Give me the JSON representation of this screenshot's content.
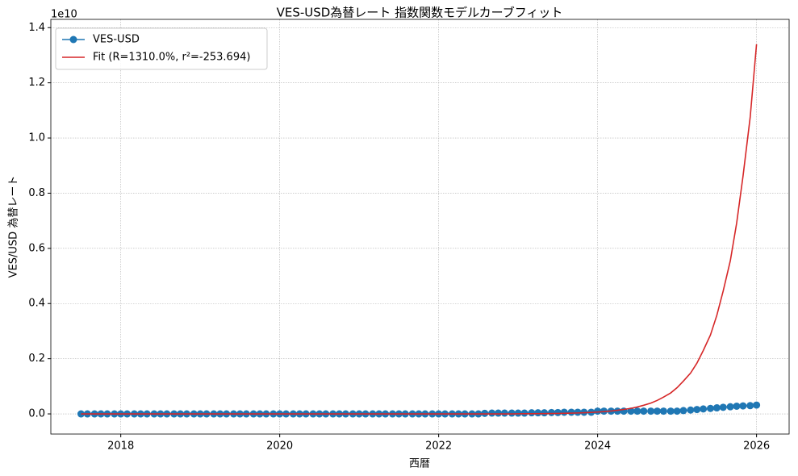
{
  "chart_data": {
    "type": "line",
    "title": "VES-USD為替レート 指数関数モデルカーブフィット",
    "xlabel": "西暦",
    "ylabel": "VES/USD 為替レート",
    "offset_text": "1e10",
    "x": [
      2017.5,
      2017.58,
      2017.67,
      2017.75,
      2017.83,
      2017.92,
      2018,
      2018.08,
      2018.17,
      2018.25,
      2018.33,
      2018.42,
      2018.5,
      2018.58,
      2018.67,
      2018.75,
      2018.83,
      2018.92,
      2019,
      2019.08,
      2019.17,
      2019.25,
      2019.33,
      2019.42,
      2019.5,
      2019.58,
      2019.67,
      2019.75,
      2019.83,
      2019.92,
      2020,
      2020.08,
      2020.17,
      2020.25,
      2020.33,
      2020.42,
      2020.5,
      2020.58,
      2020.67,
      2020.75,
      2020.83,
      2020.92,
      2021,
      2021.08,
      2021.17,
      2021.25,
      2021.33,
      2021.42,
      2021.5,
      2021.58,
      2021.67,
      2021.75,
      2021.83,
      2021.92,
      2022,
      2022.08,
      2022.17,
      2022.25,
      2022.33,
      2022.42,
      2022.5,
      2022.58,
      2022.67,
      2022.75,
      2022.83,
      2022.92,
      2023,
      2023.08,
      2023.17,
      2023.25,
      2023.33,
      2023.42,
      2023.5,
      2023.58,
      2023.67,
      2023.75,
      2023.83,
      2023.92,
      2024,
      2024.08,
      2024.17,
      2024.25,
      2024.33,
      2024.42,
      2024.5,
      2024.58,
      2024.67,
      2024.75,
      2024.83,
      2024.92,
      2025,
      2025.08,
      2025.17,
      2025.25,
      2025.33,
      2025.42,
      2025.5,
      2025.58,
      2025.67,
      2025.75,
      2025.83,
      2025.92,
      2026
    ],
    "series": [
      {
        "name": "VES-USD",
        "color": "#1f77b4",
        "marker": true,
        "values": [
          0,
          0,
          0,
          0,
          0,
          0,
          0,
          0,
          0,
          0,
          0,
          0,
          0,
          0,
          0,
          0,
          0,
          0,
          0,
          0,
          0,
          0,
          0,
          0,
          0,
          0,
          0,
          0,
          0,
          0,
          0,
          0,
          0,
          0,
          0,
          0,
          0,
          0,
          0,
          0,
          0,
          0,
          0,
          0,
          0,
          0,
          0,
          0,
          0,
          0,
          0,
          0,
          0,
          0,
          0,
          0,
          0,
          0,
          0,
          0,
          0,
          0.002,
          0.003,
          0.003,
          0.003,
          0.003,
          0.003,
          0.003,
          0.004,
          0.004,
          0.004,
          0.005,
          0.005,
          0.006,
          0.006,
          0.006,
          0.006,
          0.006,
          0.01,
          0.01,
          0.01,
          0.01,
          0.01,
          0.01,
          0.01,
          0.01,
          0.01,
          0.01,
          0.01,
          0.01,
          0.01,
          0.012,
          0.014,
          0.016,
          0.018,
          0.02,
          0.022,
          0.024,
          0.026,
          0.028,
          0.029,
          0.03,
          0.032
        ]
      },
      {
        "name": "Fit (R=1310.0%, r²=-253.694)",
        "color": "#d62728",
        "marker": false,
        "values": [
          0,
          0,
          0,
          0,
          0,
          0,
          0,
          0,
          0,
          0,
          0,
          0,
          0,
          0,
          0,
          0,
          0,
          0,
          0,
          0,
          0,
          0,
          0,
          0,
          0,
          0,
          0,
          0,
          0,
          0,
          0,
          0,
          0,
          0,
          0,
          0,
          0,
          0,
          0,
          0,
          0,
          0,
          0,
          0,
          0,
          0,
          0,
          0,
          0,
          0,
          0,
          0,
          0,
          0,
          0,
          0,
          0,
          0,
          0,
          0,
          0,
          0,
          0,
          0,
          0,
          0,
          0.0005,
          0.0006,
          0.0007,
          0.0009,
          0.0011,
          0.0014,
          0.0018,
          0.0022,
          0.0028,
          0.0034,
          0.0043,
          0.0054,
          0.0067,
          0.0084,
          0.0104,
          0.013,
          0.0162,
          0.0202,
          0.0252,
          0.0314,
          0.0392,
          0.0489,
          0.0609,
          0.076,
          0.095,
          0.119,
          0.148,
          0.184,
          0.23,
          0.286,
          0.357,
          0.445,
          0.555,
          0.692,
          0.862,
          1.075,
          1.34
        ]
      }
    ],
    "xlim": [
      2017.12,
      2026.41
    ],
    "xticks": [
      2018,
      2020,
      2022,
      2024,
      2026
    ],
    "ylim": [
      -0.073,
      1.43
    ],
    "yticks": [
      {
        "value": 0,
        "label": "0.0"
      },
      0.2,
      0.4,
      0.6,
      0.8,
      {
        "value": 1,
        "label": "1.0"
      },
      1.2,
      1.4
    ],
    "grid": true,
    "legend": "upper-left"
  }
}
